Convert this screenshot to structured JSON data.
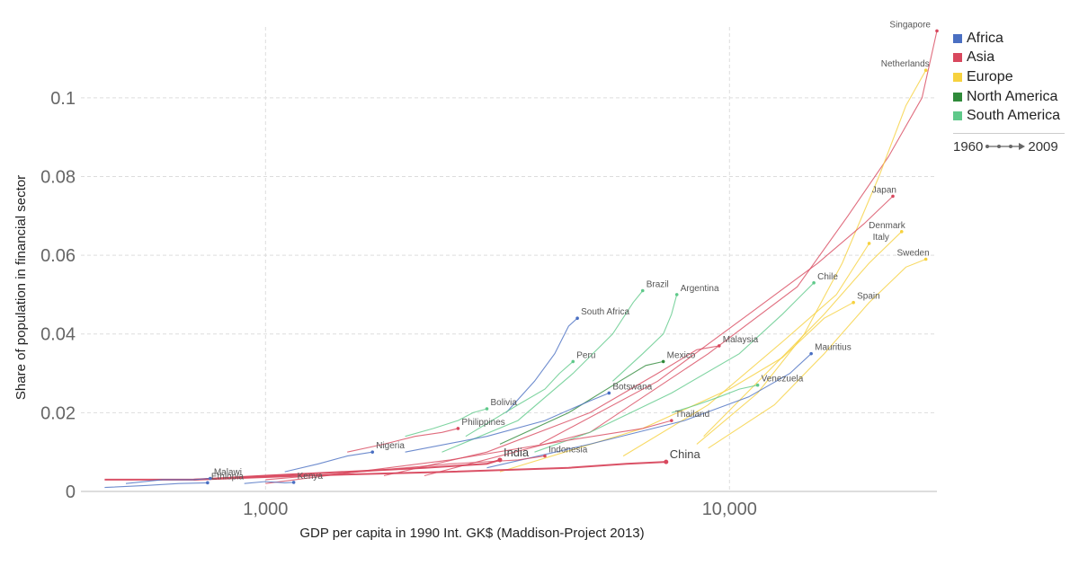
{
  "chart_data": {
    "type": "scatter",
    "xlabel": "GDP per capita in 1990 Int. GK$ (Maddison-Project 2013)",
    "ylabel": "Share of population in financial sector",
    "x_scale": "log",
    "xlim": [
      400,
      28000
    ],
    "ylim": [
      0,
      0.118
    ],
    "x_ticks": [
      {
        "value": 1000,
        "label": "1,000"
      },
      {
        "value": 10000,
        "label": "10,000"
      }
    ],
    "y_ticks": [
      {
        "value": 0,
        "label": "0"
      },
      {
        "value": 0.02,
        "label": "0.02"
      },
      {
        "value": 0.04,
        "label": "0.04"
      },
      {
        "value": 0.06,
        "label": "0.06"
      },
      {
        "value": 0.08,
        "label": "0.08"
      },
      {
        "value": 0.1,
        "label": "0.1"
      }
    ],
    "grid": true,
    "legend": {
      "placement": "right",
      "items": [
        {
          "name": "Africa",
          "color": "#4a6fc2"
        },
        {
          "name": "Asia",
          "color": "#d8485e"
        },
        {
          "name": "Europe",
          "color": "#f6d13e"
        },
        {
          "name": "North America",
          "color": "#2f8a3a"
        },
        {
          "name": "South America",
          "color": "#5fc98a"
        }
      ],
      "timeline": {
        "start": "1960",
        "end": "2009"
      }
    },
    "series": [
      {
        "name": "Singapore",
        "region": "Asia",
        "big": false,
        "points": [
          [
            2200,
            0.004
          ],
          [
            5000,
            0.015
          ],
          [
            9000,
            0.035
          ],
          [
            14000,
            0.052
          ],
          [
            18000,
            0.07
          ],
          [
            22000,
            0.085
          ],
          [
            26000,
            0.1
          ],
          [
            28000,
            0.117
          ]
        ]
      },
      {
        "name": "Netherlands",
        "region": "Europe",
        "big": false,
        "points": [
          [
            8500,
            0.012
          ],
          [
            11500,
            0.025
          ],
          [
            14500,
            0.04
          ],
          [
            17500,
            0.058
          ],
          [
            21000,
            0.08
          ],
          [
            24000,
            0.098
          ],
          [
            26500,
            0.107
          ]
        ]
      },
      {
        "name": "Denmark",
        "region": "Europe",
        "big": false,
        "points": [
          [
            8800,
            0.014
          ],
          [
            12000,
            0.03
          ],
          [
            16000,
            0.045
          ],
          [
            20000,
            0.058
          ],
          [
            23500,
            0.066
          ]
        ]
      },
      {
        "name": "Italy",
        "region": "Europe",
        "big": false,
        "points": [
          [
            5900,
            0.009
          ],
          [
            9000,
            0.022
          ],
          [
            13000,
            0.038
          ],
          [
            17000,
            0.05
          ],
          [
            20000,
            0.063
          ]
        ]
      },
      {
        "name": "Japan",
        "region": "Asia",
        "big": false,
        "points": [
          [
            3900,
            0.012
          ],
          [
            7000,
            0.028
          ],
          [
            11000,
            0.045
          ],
          [
            15500,
            0.058
          ],
          [
            19500,
            0.068
          ],
          [
            22500,
            0.075
          ]
        ]
      },
      {
        "name": "Sweden",
        "region": "Europe",
        "big": false,
        "points": [
          [
            9000,
            0.011
          ],
          [
            12500,
            0.022
          ],
          [
            16000,
            0.035
          ],
          [
            20000,
            0.048
          ],
          [
            24000,
            0.057
          ],
          [
            26500,
            0.059
          ]
        ]
      },
      {
        "name": "Spain",
        "region": "Europe",
        "big": false,
        "points": [
          [
            3200,
            0.005
          ],
          [
            6500,
            0.016
          ],
          [
            10000,
            0.026
          ],
          [
            13000,
            0.034
          ],
          [
            16000,
            0.044
          ],
          [
            18500,
            0.048
          ]
        ]
      },
      {
        "name": "Chile",
        "region": "South America",
        "big": false,
        "points": [
          [
            3800,
            0.01
          ],
          [
            5000,
            0.015
          ],
          [
            7500,
            0.025
          ],
          [
            10500,
            0.035
          ],
          [
            13000,
            0.045
          ],
          [
            15200,
            0.053
          ]
        ]
      },
      {
        "name": "Mauritius",
        "region": "Africa",
        "big": false,
        "points": [
          [
            3000,
            0.006
          ],
          [
            5000,
            0.012
          ],
          [
            8000,
            0.018
          ],
          [
            11000,
            0.024
          ],
          [
            13500,
            0.03
          ],
          [
            15000,
            0.035
          ]
        ]
      },
      {
        "name": "Brazil",
        "region": "South America",
        "big": false,
        "points": [
          [
            2400,
            0.01
          ],
          [
            3500,
            0.018
          ],
          [
            4600,
            0.03
          ],
          [
            5600,
            0.04
          ],
          [
            6200,
            0.048
          ],
          [
            6500,
            0.051
          ]
        ]
      },
      {
        "name": "Argentina",
        "region": "South America",
        "big": false,
        "points": [
          [
            5600,
            0.028
          ],
          [
            6500,
            0.035
          ],
          [
            7200,
            0.04
          ],
          [
            7500,
            0.045
          ],
          [
            7700,
            0.05
          ]
        ]
      },
      {
        "name": "Malaysia",
        "region": "Asia",
        "big": false,
        "points": [
          [
            1800,
            0.004
          ],
          [
            3000,
            0.01
          ],
          [
            5000,
            0.02
          ],
          [
            7000,
            0.03
          ],
          [
            8500,
            0.036
          ],
          [
            9500,
            0.037
          ]
        ]
      },
      {
        "name": "Mexico",
        "region": "North America",
        "big": false,
        "points": [
          [
            3200,
            0.012
          ],
          [
            4500,
            0.02
          ],
          [
            5800,
            0.028
          ],
          [
            6600,
            0.032
          ],
          [
            7200,
            0.033
          ]
        ]
      },
      {
        "name": "Venezuela",
        "region": "South America",
        "big": false,
        "points": [
          [
            7500,
            0.02
          ],
          [
            8500,
            0.022
          ],
          [
            9500,
            0.024
          ],
          [
            10500,
            0.026
          ],
          [
            11500,
            0.027
          ]
        ]
      },
      {
        "name": "Thailand",
        "region": "Asia",
        "big": false,
        "points": [
          [
            1000,
            0.002
          ],
          [
            2500,
            0.008
          ],
          [
            4500,
            0.013
          ],
          [
            6500,
            0.016
          ],
          [
            7500,
            0.018
          ]
        ]
      },
      {
        "name": "South Africa",
        "region": "Africa",
        "big": false,
        "points": [
          [
            3300,
            0.02
          ],
          [
            3800,
            0.028
          ],
          [
            4200,
            0.035
          ],
          [
            4500,
            0.042
          ],
          [
            4700,
            0.044
          ]
        ]
      },
      {
        "name": "Peru",
        "region": "South America",
        "big": false,
        "points": [
          [
            2700,
            0.014
          ],
          [
            3500,
            0.022
          ],
          [
            4000,
            0.026
          ],
          [
            4300,
            0.03
          ],
          [
            4600,
            0.033
          ]
        ]
      },
      {
        "name": "Botswana",
        "region": "Africa",
        "big": false,
        "points": [
          [
            2000,
            0.01
          ],
          [
            3000,
            0.014
          ],
          [
            4000,
            0.018
          ],
          [
            5000,
            0.023
          ],
          [
            5500,
            0.025
          ]
        ]
      },
      {
        "name": "Bolivia",
        "region": "South America",
        "big": false,
        "points": [
          [
            2000,
            0.014
          ],
          [
            2300,
            0.016
          ],
          [
            2600,
            0.018
          ],
          [
            2800,
            0.02
          ],
          [
            3000,
            0.021
          ]
        ]
      },
      {
        "name": "Philippines",
        "region": "Asia",
        "big": false,
        "points": [
          [
            1500,
            0.01
          ],
          [
            1800,
            0.012
          ],
          [
            2100,
            0.014
          ],
          [
            2400,
            0.015
          ],
          [
            2600,
            0.016
          ]
        ]
      },
      {
        "name": "Nigeria",
        "region": "Africa",
        "big": false,
        "points": [
          [
            1100,
            0.005
          ],
          [
            1300,
            0.007
          ],
          [
            1500,
            0.009
          ],
          [
            1700,
            0.01
          ]
        ]
      },
      {
        "name": "India",
        "region": "Asia",
        "big": true,
        "points": [
          [
            700,
            0.003
          ],
          [
            1000,
            0.004
          ],
          [
            1500,
            0.005
          ],
          [
            2200,
            0.006
          ],
          [
            3000,
            0.007
          ],
          [
            3200,
            0.008
          ]
        ]
      },
      {
        "name": "Indonesia",
        "region": "Asia",
        "big": false,
        "points": [
          [
            1000,
            0.003
          ],
          [
            1600,
            0.005
          ],
          [
            2500,
            0.007
          ],
          [
            3500,
            0.008
          ],
          [
            4000,
            0.009
          ]
        ]
      },
      {
        "name": "China",
        "region": "Asia",
        "big": true,
        "points": [
          [
            450,
            0.003
          ],
          [
            700,
            0.003
          ],
          [
            1200,
            0.004
          ],
          [
            2500,
            0.005
          ],
          [
            4500,
            0.006
          ],
          [
            6000,
            0.007
          ],
          [
            7300,
            0.0075
          ]
        ]
      },
      {
        "name": "Malawi",
        "region": "Africa",
        "big": false,
        "points": [
          [
            500,
            0.002
          ],
          [
            600,
            0.003
          ],
          [
            700,
            0.003
          ],
          [
            760,
            0.0033
          ]
        ]
      },
      {
        "name": "Ethiopia",
        "region": "Africa",
        "big": false,
        "points": [
          [
            450,
            0.001
          ],
          [
            550,
            0.0015
          ],
          [
            650,
            0.002
          ],
          [
            750,
            0.0022
          ]
        ]
      },
      {
        "name": "Kenya",
        "region": "Africa",
        "big": false,
        "points": [
          [
            900,
            0.002
          ],
          [
            1000,
            0.0025
          ],
          [
            1100,
            0.0022
          ],
          [
            1150,
            0.0023
          ]
        ]
      }
    ]
  }
}
